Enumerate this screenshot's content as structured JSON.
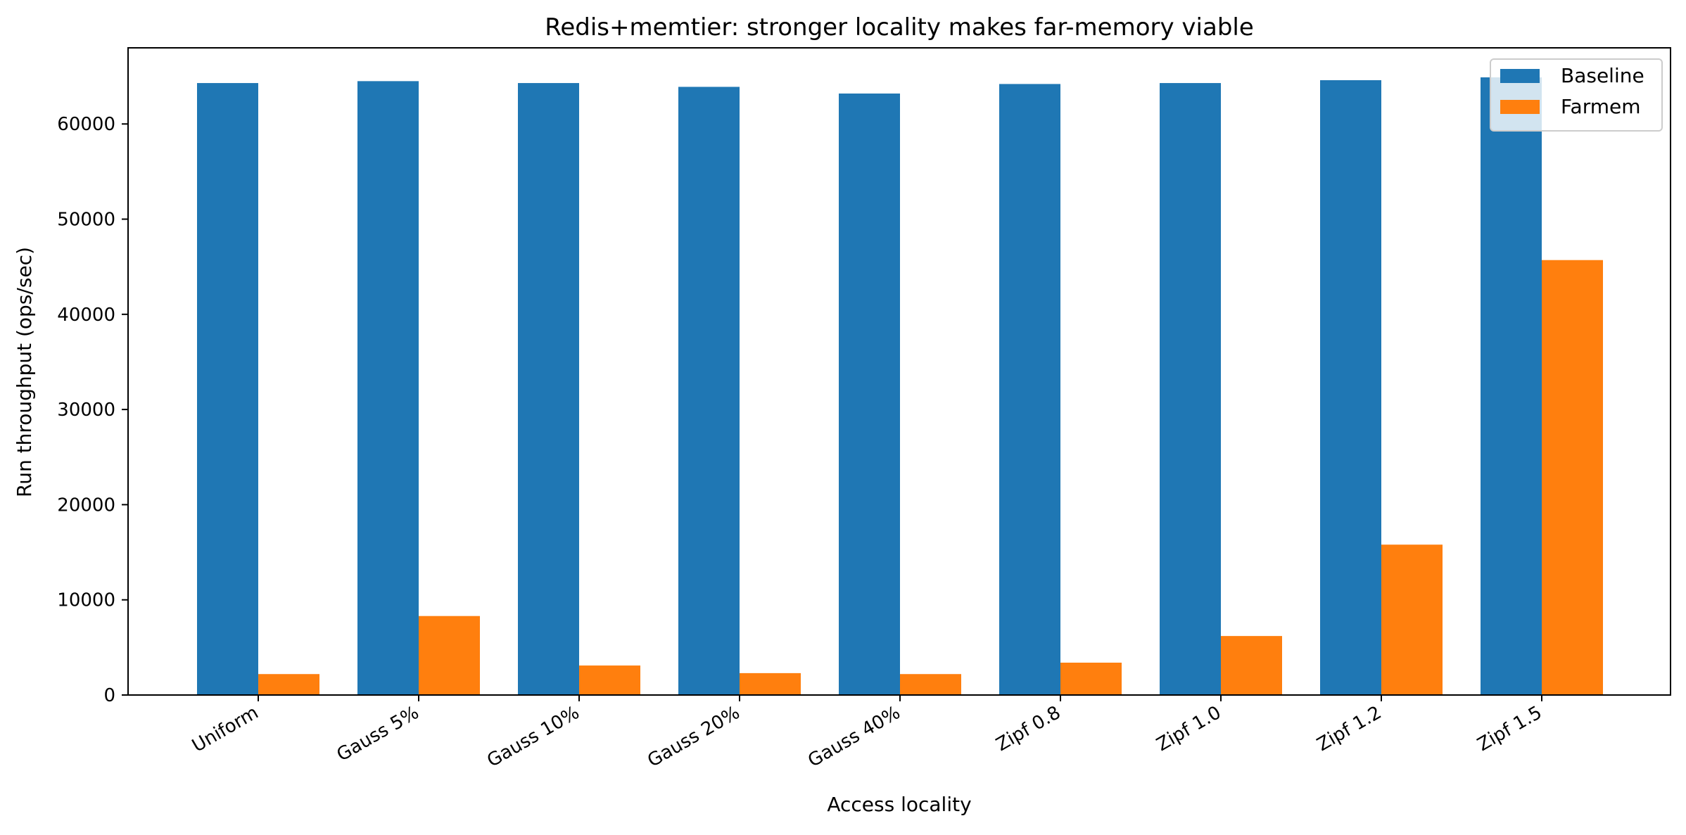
{
  "chart_data": {
    "type": "bar",
    "title": "Redis+memtier: stronger locality makes far-memory viable",
    "xlabel": "Access locality",
    "ylabel": "Run throughput (ops/sec)",
    "categories": [
      "Uniform",
      "Gauss 5%",
      "Gauss 10%",
      "Gauss 20%",
      "Gauss 40%",
      "Zipf 0.8",
      "Zipf 1.0",
      "Zipf 1.2",
      "Zipf 1.5"
    ],
    "series": [
      {
        "name": "Baseline",
        "color": "#1f77b4",
        "values": [
          64300,
          64500,
          64300,
          63900,
          63200,
          64200,
          64300,
          64600,
          64900
        ]
      },
      {
        "name": "Farmem",
        "color": "#ff7f0e",
        "values": [
          2200,
          8300,
          3100,
          2300,
          2200,
          3400,
          6200,
          15800,
          45700
        ]
      }
    ],
    "ylim": [
      0,
      68000
    ],
    "yticks": [
      0,
      10000,
      20000,
      30000,
      40000,
      50000,
      60000
    ],
    "grid": false,
    "legend_position": "top-right"
  }
}
